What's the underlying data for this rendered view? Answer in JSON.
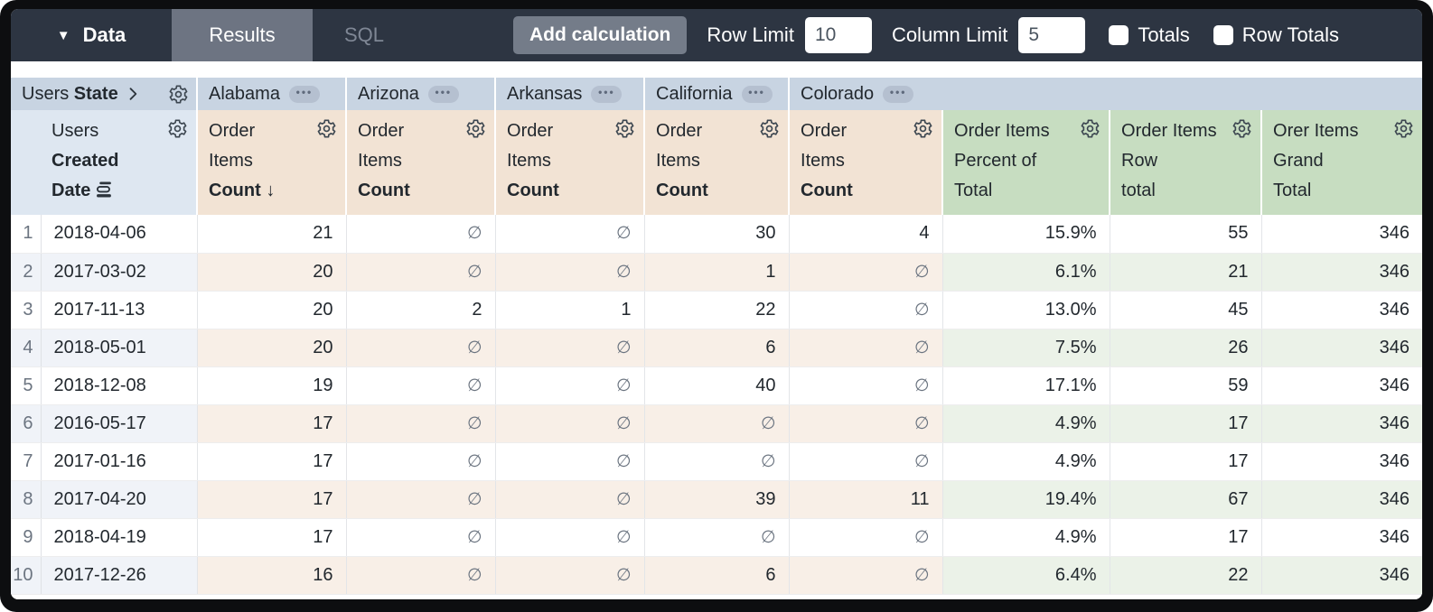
{
  "toolbar": {
    "data_tab": "Data",
    "results_tab": "Results",
    "sql_tab": "SQL",
    "add_calculation_label": "Add calculation",
    "row_limit_label": "Row Limit",
    "row_limit_value": "10",
    "column_limit_label": "Column Limit",
    "column_limit_value": "5",
    "totals_label": "Totals",
    "row_totals_label": "Row Totals",
    "totals_checked": false,
    "row_totals_checked": false
  },
  "table": {
    "pivot_header": {
      "view": "Users",
      "field": "State"
    },
    "pivot_values": [
      "Alabama",
      "Arizona",
      "Arkansas",
      "California",
      "Colorado"
    ],
    "row_dimension": {
      "view": "Users",
      "field_line1": "Created",
      "field_line2": "Date"
    },
    "measure": {
      "view_line1": "Order",
      "view_line2": "Items",
      "field": "Count",
      "sort_arrow": "↓"
    },
    "calc_columns": [
      {
        "lines": [
          "Order Items",
          "Percent of",
          "Total"
        ]
      },
      {
        "lines": [
          "Order Items",
          "Row",
          "total"
        ]
      },
      {
        "lines": [
          "Orer Items",
          "Grand",
          "Total"
        ]
      }
    ],
    "empty_symbol": "∅",
    "rows": [
      {
        "index": 1,
        "date": "2018-04-06",
        "values": [
          21,
          null,
          null,
          30,
          4
        ],
        "percent_of_total": "15.9%",
        "row_total": 55,
        "grand_total": 346
      },
      {
        "index": 2,
        "date": "2017-03-02",
        "values": [
          20,
          null,
          null,
          1,
          null
        ],
        "percent_of_total": "6.1%",
        "row_total": 21,
        "grand_total": 346
      },
      {
        "index": 3,
        "date": "2017-11-13",
        "values": [
          20,
          2,
          1,
          22,
          null
        ],
        "percent_of_total": "13.0%",
        "row_total": 45,
        "grand_total": 346
      },
      {
        "index": 4,
        "date": "2018-05-01",
        "values": [
          20,
          null,
          null,
          6,
          null
        ],
        "percent_of_total": "7.5%",
        "row_total": 26,
        "grand_total": 346
      },
      {
        "index": 5,
        "date": "2018-12-08",
        "values": [
          19,
          null,
          null,
          40,
          null
        ],
        "percent_of_total": "17.1%",
        "row_total": 59,
        "grand_total": 346
      },
      {
        "index": 6,
        "date": "2016-05-17",
        "values": [
          17,
          null,
          null,
          null,
          null
        ],
        "percent_of_total": "4.9%",
        "row_total": 17,
        "grand_total": 346
      },
      {
        "index": 7,
        "date": "2017-01-16",
        "values": [
          17,
          null,
          null,
          null,
          null
        ],
        "percent_of_total": "4.9%",
        "row_total": 17,
        "grand_total": 346
      },
      {
        "index": 8,
        "date": "2017-04-20",
        "values": [
          17,
          null,
          null,
          39,
          11
        ],
        "percent_of_total": "19.4%",
        "row_total": 67,
        "grand_total": 346
      },
      {
        "index": 9,
        "date": "2018-04-19",
        "values": [
          17,
          null,
          null,
          null,
          null
        ],
        "percent_of_total": "4.9%",
        "row_total": 17,
        "grand_total": 346
      },
      {
        "index": 10,
        "date": "2017-12-26",
        "values": [
          16,
          null,
          null,
          6,
          null
        ],
        "percent_of_total": "6.4%",
        "row_total": 22,
        "grand_total": 346
      }
    ]
  },
  "colors": {
    "topbar_bg": "#2d3542",
    "results_tab_bg": "#6d7482",
    "pivot_header_bg": "#c8d4e2",
    "dimension_header_bg": "#dee7f1",
    "measure_header_bg": "#f2e3d4",
    "calc_header_bg": "#c7ddc1",
    "measure_stripe": "#f8efe7",
    "calc_stripe": "#ebf2e8",
    "dimension_stripe": "#f0f3f8"
  }
}
